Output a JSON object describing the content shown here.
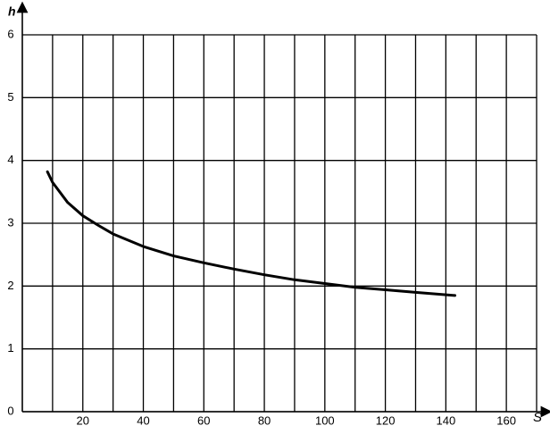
{
  "chart_data": {
    "type": "line",
    "x_label": "S",
    "y_label": "h",
    "x": [
      8.3,
      10,
      15,
      20,
      25,
      30,
      40,
      50,
      60,
      70,
      80,
      90,
      100,
      110,
      120,
      130,
      143
    ],
    "series": [
      {
        "color": "#000000",
        "values": [
          3.82,
          3.65,
          3.33,
          3.12,
          2.97,
          2.83,
          2.63,
          2.48,
          2.37,
          2.27,
          2.18,
          2.1,
          2.04,
          1.98,
          1.94,
          1.9,
          1.85
        ]
      }
    ],
    "xlim": [
      0,
      170
    ],
    "ylim": [
      0,
      6
    ],
    "xticks": [
      20,
      40,
      60,
      80,
      100,
      120,
      140,
      160
    ],
    "minor_xticks": [
      10,
      30,
      50,
      70,
      90,
      110,
      130,
      150,
      170
    ],
    "yticks": [
      0,
      1,
      2,
      3,
      4,
      5,
      6
    ],
    "grid": true
  }
}
